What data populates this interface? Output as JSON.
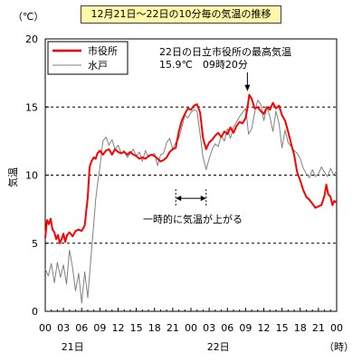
{
  "title": "12月21日～22日の10分毎の気温の推移",
  "chart_data": {
    "type": "line",
    "title": "12月21日～22日の10分毎の気温の推移",
    "ylabel": "気温",
    "yunit": "（℃）",
    "xunit": "（時）",
    "ylim": [
      0,
      20
    ],
    "yticks": [
      0,
      5,
      10,
      15,
      20
    ],
    "xlim": [
      0,
      48
    ],
    "xtick_labels": [
      "00",
      "03",
      "06",
      "09",
      "12",
      "15",
      "18",
      "21",
      "00",
      "03",
      "06",
      "09",
      "12",
      "15",
      "18",
      "21",
      "00"
    ],
    "day_labels": [
      {
        "label": "21日",
        "at": 4.5
      },
      {
        "label": "22日",
        "at": 28.5
      }
    ],
    "gridlines_dashed_at": [
      5,
      10,
      15
    ],
    "legend_position": "top-left",
    "series": [
      {
        "name": "市役所",
        "color": "#ff0000",
        "x": [
          0,
          0.3,
          0.6,
          0.9,
          1.2,
          1.5,
          1.8,
          2.1,
          2.4,
          2.7,
          3.0,
          3.3,
          3.6,
          4.0,
          4.5,
          5.0,
          5.5,
          6.0,
          6.5,
          7.0,
          7.3,
          7.6,
          8.0,
          8.3,
          8.6,
          9.0,
          9.5,
          10.0,
          10.5,
          11.0,
          11.5,
          12.0,
          12.5,
          13.0,
          13.5,
          14.0,
          14.5,
          15.0,
          15.5,
          16.0,
          16.5,
          17.0,
          17.5,
          18.0,
          18.5,
          19.0,
          19.5,
          20.0,
          20.5,
          21.0,
          21.5,
          22.0,
          22.5,
          23.0,
          23.5,
          24.0,
          24.5,
          25.0,
          25.5,
          26.0,
          26.5,
          27.0,
          27.5,
          28.0,
          28.5,
          29.0,
          29.5,
          30.0,
          30.5,
          31.0,
          31.5,
          32.0,
          32.5,
          33.0,
          33.3,
          33.6,
          34.0,
          34.5,
          35.0,
          35.5,
          36.0,
          36.5,
          37.0,
          37.5,
          38.0,
          38.5,
          39.0,
          39.5,
          40.0,
          40.5,
          41.0,
          41.5,
          42.0,
          42.5,
          43.0,
          43.5,
          44.0,
          44.5,
          45.0,
          45.5,
          46.0,
          46.3,
          46.6,
          47.0,
          47.3,
          47.6,
          48.0
        ],
        "y": [
          5.4,
          6.7,
          6.4,
          6.8,
          6.0,
          5.8,
          5.3,
          5.6,
          5.0,
          5.3,
          5.7,
          5.1,
          5.6,
          5.8,
          5.5,
          5.9,
          6.0,
          5.9,
          6.3,
          8.4,
          10.6,
          11.0,
          11.3,
          11.2,
          11.6,
          11.8,
          11.5,
          11.8,
          11.9,
          11.5,
          11.9,
          11.7,
          11.6,
          11.7,
          11.5,
          11.7,
          11.5,
          11.4,
          11.2,
          11.3,
          11.2,
          11.4,
          11.5,
          11.4,
          11.2,
          11.0,
          11.1,
          11.3,
          11.7,
          11.9,
          12.0,
          13.2,
          14.0,
          14.5,
          14.9,
          14.8,
          15.1,
          15.2,
          14.6,
          12.7,
          11.9,
          12.4,
          12.6,
          12.9,
          13.1,
          12.8,
          13.2,
          13.0,
          13.5,
          13.1,
          13.6,
          13.9,
          13.8,
          14.2,
          14.9,
          15.9,
          15.6,
          14.9,
          15.0,
          14.7,
          14.5,
          15.0,
          14.8,
          15.3,
          14.9,
          15.1,
          14.4,
          14.0,
          13.2,
          12.3,
          11.5,
          10.2,
          9.6,
          8.9,
          8.4,
          8.2,
          7.9,
          7.6,
          7.7,
          7.8,
          8.5,
          9.3,
          8.6,
          8.4,
          7.8,
          8.1,
          8.0
        ]
      },
      {
        "name": "水戸",
        "color": "#808080",
        "x": [
          0,
          0.5,
          1.0,
          1.5,
          2.0,
          2.5,
          3.0,
          3.5,
          4.0,
          4.5,
          5.0,
          5.5,
          6.0,
          6.5,
          7.0,
          7.5,
          8.0,
          8.3,
          8.6,
          9.0,
          9.5,
          10.0,
          10.5,
          11.0,
          11.5,
          12.0,
          12.5,
          13.0,
          13.5,
          14.0,
          14.5,
          15.0,
          15.5,
          16.0,
          16.5,
          17.0,
          17.5,
          18.0,
          18.5,
          19.0,
          19.5,
          20.0,
          20.5,
          21.0,
          21.5,
          22.0,
          22.5,
          23.0,
          23.5,
          24.0,
          24.5,
          25.0,
          25.5,
          26.0,
          26.5,
          27.0,
          27.5,
          28.0,
          28.5,
          29.0,
          29.5,
          30.0,
          30.5,
          31.0,
          31.5,
          32.0,
          32.5,
          33.0,
          33.5,
          34.0,
          34.5,
          35.0,
          35.5,
          36.0,
          36.5,
          37.0,
          37.5,
          38.0,
          38.5,
          39.0,
          39.5,
          40.0,
          40.5,
          41.0,
          41.5,
          42.0,
          42.5,
          43.0,
          43.5,
          44.0,
          44.5,
          45.0,
          45.5,
          46.0,
          46.5,
          47.0,
          47.5,
          48.0
        ],
        "y": [
          3.1,
          2.6,
          3.5,
          2.1,
          3.6,
          2.5,
          3.4,
          2.0,
          4.5,
          3.2,
          1.5,
          2.8,
          0.6,
          2.9,
          1.0,
          3.8,
          6.5,
          8.2,
          9.3,
          10.6,
          12.5,
          12.8,
          12.2,
          12.6,
          11.9,
          12.2,
          11.6,
          11.8,
          11.3,
          11.6,
          11.9,
          11.4,
          11.7,
          11.0,
          11.8,
          11.3,
          11.5,
          11.6,
          10.7,
          11.5,
          11.6,
          12.4,
          12.7,
          11.9,
          12.4,
          12.7,
          13.5,
          14.4,
          14.2,
          14.6,
          14.8,
          14.7,
          13.0,
          11.3,
          10.4,
          11.2,
          11.9,
          12.3,
          12.1,
          12.9,
          12.5,
          13.4,
          12.7,
          13.5,
          13.9,
          14.3,
          14.6,
          14.9,
          13.0,
          13.4,
          14.6,
          15.5,
          15.2,
          14.0,
          15.0,
          14.3,
          13.2,
          14.7,
          13.8,
          12.0,
          13.3,
          12.4,
          12.1,
          11.8,
          11.6,
          11.2,
          10.5,
          10.1,
          9.8,
          10.4,
          9.9,
          10.1,
          10.6,
          10.2,
          9.9,
          10.5,
          10.0,
          10.3
        ]
      }
    ],
    "annotations": [
      {
        "text_line1": "22日の日立市役所の最高気温",
        "text_line2": "15.9℃　09時20分",
        "arrow_to": [
          33.3,
          15.9
        ]
      },
      {
        "text": "一時的に気温が上がる",
        "span_from": 21.5,
        "span_to": 26.5,
        "span_y": 8.3
      }
    ]
  }
}
